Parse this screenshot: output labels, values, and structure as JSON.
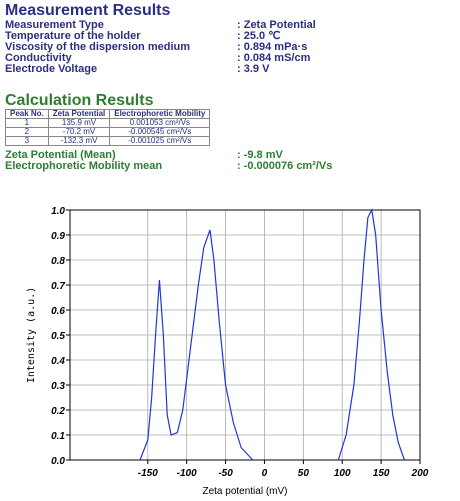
{
  "measurement": {
    "title": "Measurement Results",
    "rows": [
      [
        "Measurement Type",
        ": Zeta Potential"
      ],
      [
        "Temperature of the holder",
        ": 25.0 ℃"
      ],
      [
        "Viscosity of the dispersion medium",
        ": 0.894 mPa·s"
      ],
      [
        "Conductivity",
        ": 0.084 mS/cm"
      ],
      [
        "Electrode Voltage",
        ": 3.9 V"
      ]
    ]
  },
  "calculation": {
    "title": "Calculation Results",
    "table": {
      "header": [
        "Peak No.",
        "Zeta Potential",
        "Electrophoretic Mobility"
      ],
      "rows": [
        [
          "1",
          "135.9 mV",
          "0.001053 cm²/Vs"
        ],
        [
          "2",
          "-70.2 mV",
          "-0.000545 cm²/Vs"
        ],
        [
          "3",
          "-132.3 mV",
          "-0.001025 cm²/Vs"
        ]
      ]
    },
    "rows": [
      [
        "Zeta Potential (Mean)",
        ": -9.8 mV"
      ],
      [
        "Electrophoretic Mobility mean",
        ": -0.000076 cm²/Vs"
      ]
    ]
  },
  "chart_data": {
    "type": "line",
    "x_label": "Zeta potential (mV)",
    "y_label": "Intensity (a.u.)",
    "x": [
      -160,
      -150,
      -145,
      -140,
      -135,
      -130,
      -125,
      -120,
      -112,
      -105,
      -95,
      -85,
      -78,
      -70,
      -65,
      -58,
      -50,
      -40,
      -30,
      -15,
      0,
      95,
      105,
      115,
      122,
      128,
      133,
      138,
      143,
      150,
      158,
      165,
      172,
      180
    ],
    "series": [
      {
        "name": null,
        "color": "#2233dd",
        "values": [
          0,
          0.08,
          0.25,
          0.5,
          0.72,
          0.5,
          0.18,
          0.1,
          0.11,
          0.2,
          0.45,
          0.7,
          0.85,
          0.92,
          0.8,
          0.55,
          0.3,
          0.15,
          0.05,
          0,
          null,
          0,
          0.1,
          0.3,
          0.55,
          0.8,
          0.97,
          1.0,
          0.9,
          0.6,
          0.35,
          0.18,
          0.07,
          0
        ]
      }
    ],
    "xlim": [
      -250,
      200
    ],
    "xticks": [
      -150,
      -100,
      -50,
      0,
      50,
      100,
      150,
      200
    ],
    "ylim": [
      0,
      1.0
    ],
    "yticks": [
      {
        "value": 0,
        "label": "0.0"
      },
      0.1,
      0.2,
      0.3,
      0.4,
      0.5,
      0.6,
      0.7,
      0.8,
      0.9,
      {
        "value": 1.0,
        "label": "1.0"
      }
    ],
    "grid": true
  }
}
